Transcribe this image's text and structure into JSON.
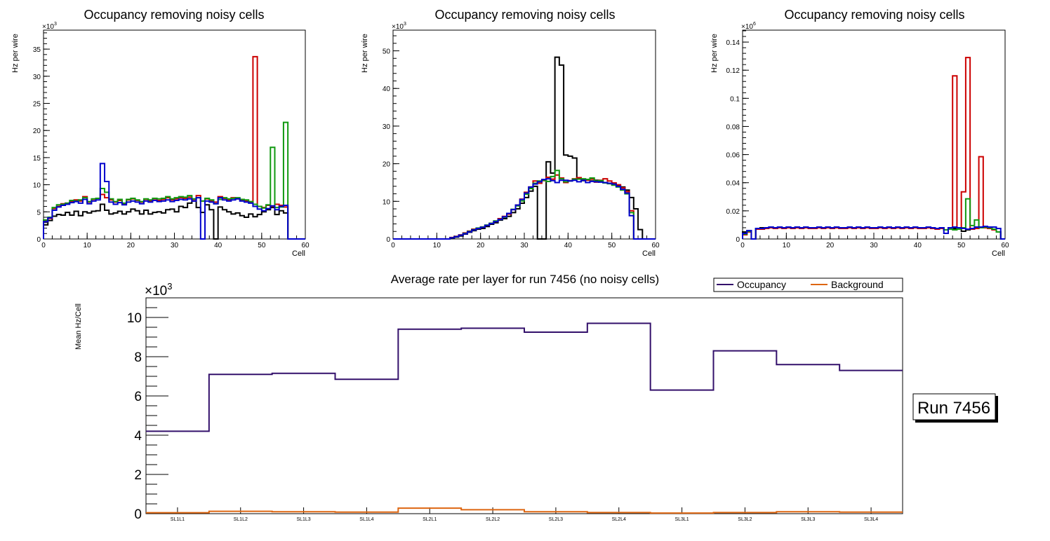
{
  "window": {
    "title": "Average rate per layer for run 7456"
  },
  "colors": {
    "black": "#000000",
    "red": "#cc0000",
    "green": "#119911",
    "blue": "#0000cc",
    "occupancy": "#33106b",
    "background": "#dd6611"
  },
  "chart_data": [
    {
      "type": "step",
      "title": "Occupancy removing noisy cells",
      "xlabel": "Cell",
      "ylabel": "Hz per wire",
      "exponent_label": "×10",
      "exponent_power": "3",
      "scale": 1000,
      "xlim": [
        0,
        60
      ],
      "ylim": [
        0,
        38.5
      ],
      "xticks": [
        "0",
        "10",
        "20",
        "30",
        "40",
        "50",
        "60"
      ],
      "xtick_values": [
        0,
        10,
        20,
        30,
        40,
        50,
        60
      ],
      "yticks": [
        "0",
        "5",
        "10",
        "15",
        "20",
        "25",
        "30",
        "35"
      ],
      "ytick_values": [
        0,
        5,
        10,
        15,
        20,
        25,
        30,
        35
      ],
      "series": [
        {
          "name": "black",
          "color": "#000000",
          "values": [
            2.6,
            3.4,
            4.2,
            4.5,
            4.4,
            4.9,
            4.4,
            5.1,
            4.3,
            5.0,
            4.8,
            5.1,
            5.2,
            6.4,
            5.3,
            4.6,
            4.8,
            5.1,
            4.6,
            5.0,
            5.5,
            5.2,
            4.6,
            5.3,
            4.6,
            4.9,
            5.0,
            4.8,
            5.4,
            5.5,
            5.0,
            6.0,
            5.8,
            6.6,
            7.0,
            5.8,
            4.9,
            6.3,
            5.4,
            0.0,
            5.9,
            5.4,
            5.0,
            4.6,
            4.8,
            4.3,
            4.0,
            4.6,
            4.1,
            4.5,
            5.0,
            5.4,
            5.8,
            4.5,
            5.2,
            4.8,
            0.0,
            0.0,
            0.0,
            0.0
          ]
        },
        {
          "name": "red",
          "color": "#cc0000",
          "values": [
            3.3,
            3.8,
            5.6,
            6.0,
            6.5,
            6.6,
            6.9,
            7.2,
            7.0,
            7.8,
            6.8,
            7.3,
            7.5,
            8.2,
            7.6,
            7.2,
            6.8,
            7.1,
            6.5,
            7.2,
            7.4,
            7.1,
            6.8,
            7.3,
            7.0,
            7.4,
            7.1,
            7.3,
            7.6,
            7.2,
            7.4,
            7.6,
            7.5,
            7.7,
            7.3,
            8.0,
            7.0,
            7.4,
            7.0,
            6.8,
            7.8,
            7.5,
            7.2,
            7.6,
            7.4,
            7.1,
            7.0,
            6.8,
            33.6,
            6.0,
            5.8,
            6.2,
            6.0,
            6.4,
            6.2,
            5.9,
            0.0,
            0.0,
            0.0,
            0.0
          ]
        },
        {
          "name": "green",
          "color": "#119911",
          "values": [
            3.5,
            4.0,
            5.8,
            6.3,
            6.4,
            6.6,
            7.1,
            7.0,
            7.2,
            7.6,
            6.9,
            7.4,
            7.5,
            9.3,
            8.6,
            7.4,
            6.9,
            7.3,
            6.6,
            7.3,
            7.5,
            7.2,
            6.9,
            7.4,
            7.2,
            7.5,
            7.4,
            7.5,
            7.8,
            7.4,
            7.6,
            7.8,
            7.7,
            8.0,
            7.4,
            7.6,
            7.0,
            7.5,
            7.2,
            6.5,
            7.3,
            7.6,
            7.4,
            7.5,
            7.6,
            7.3,
            7.2,
            6.9,
            6.4,
            6.0,
            5.7,
            6.3,
            16.9,
            5.8,
            5.9,
            21.5,
            0.0,
            0.0,
            0.0,
            0.0
          ]
        },
        {
          "name": "blue",
          "color": "#0000cc",
          "values": [
            3.2,
            3.9,
            5.3,
            5.9,
            6.2,
            6.4,
            6.7,
            6.9,
            6.6,
            7.3,
            6.5,
            7.0,
            7.2,
            13.9,
            10.6,
            6.8,
            6.4,
            6.7,
            6.3,
            6.8,
            7.0,
            6.8,
            6.5,
            7.0,
            6.8,
            7.1,
            6.9,
            7.0,
            7.2,
            6.9,
            7.1,
            7.3,
            7.2,
            7.4,
            7.0,
            7.6,
            0.0,
            7.0,
            6.8,
            6.5,
            7.6,
            7.2,
            7.0,
            7.2,
            7.4,
            7.0,
            6.8,
            6.6,
            6.0,
            5.5,
            5.2,
            5.6,
            6.1,
            5.4,
            6.0,
            6.2,
            0.0,
            0.0,
            0.0,
            0.0
          ]
        }
      ]
    },
    {
      "type": "step",
      "title": "Occupancy removing noisy cells",
      "xlabel": "Cell",
      "ylabel": "Hz per wire",
      "exponent_label": "×10",
      "exponent_power": "3",
      "scale": 1000,
      "xlim": [
        0,
        60
      ],
      "ylim": [
        0,
        55.5
      ],
      "xticks": [
        "0",
        "10",
        "20",
        "30",
        "40",
        "50",
        "60"
      ],
      "xtick_values": [
        0,
        10,
        20,
        30,
        40,
        50,
        60
      ],
      "yticks": [
        "0",
        "10",
        "20",
        "30",
        "40",
        "50"
      ],
      "ytick_values": [
        0,
        10,
        20,
        30,
        40,
        50
      ],
      "series": [
        {
          "name": "black",
          "color": "#000000",
          "values": [
            0.0,
            0.0,
            0.0,
            0.0,
            0.0,
            0.0,
            0.0,
            0.0,
            0.0,
            0.0,
            0.0,
            0.0,
            0.0,
            0.3,
            0.5,
            0.8,
            1.3,
            1.8,
            2.2,
            2.6,
            2.8,
            3.3,
            3.9,
            4.3,
            5.0,
            5.4,
            6.0,
            7.0,
            8.0,
            9.5,
            11.0,
            12.7,
            14.0,
            0.0,
            0.0,
            20.5,
            17.5,
            48.3,
            46.2,
            22.3,
            22.0,
            21.5,
            16.0,
            15.5,
            15.8,
            15.4,
            15.6,
            15.2,
            15.0,
            14.8,
            14.6,
            14.2,
            13.8,
            13.0,
            11.0,
            8.0,
            2.5,
            0.0,
            0.0,
            0.0
          ]
        },
        {
          "name": "red",
          "color": "#cc0000",
          "values": [
            0.0,
            0.0,
            0.0,
            0.0,
            0.0,
            0.0,
            0.0,
            0.0,
            0.0,
            0.0,
            0.0,
            0.0,
            0.0,
            0.4,
            0.7,
            1.1,
            1.6,
            2.1,
            2.6,
            2.8,
            3.2,
            3.6,
            4.1,
            4.6,
            5.4,
            6.0,
            6.6,
            7.8,
            9.0,
            10.6,
            12.4,
            13.8,
            15.4,
            14.8,
            15.5,
            16.4,
            15.9,
            17.0,
            16.2,
            15.0,
            15.5,
            16.0,
            16.3,
            15.7,
            15.6,
            15.9,
            15.1,
            15.6,
            16.0,
            15.4,
            14.9,
            14.4,
            13.6,
            12.6,
            7.5,
            0.0,
            0.0,
            0.0,
            0.0,
            0.0
          ]
        },
        {
          "name": "green",
          "color": "#119911",
          "values": [
            0.0,
            0.0,
            0.0,
            0.0,
            0.0,
            0.0,
            0.0,
            0.0,
            0.0,
            0.0,
            0.0,
            0.0,
            0.0,
            0.3,
            0.6,
            1.0,
            1.5,
            2.0,
            2.5,
            2.9,
            3.2,
            3.7,
            4.2,
            4.8,
            5.2,
            5.8,
            6.8,
            7.9,
            8.8,
            10.1,
            11.9,
            13.4,
            14.8,
            15.4,
            15.6,
            15.3,
            16.6,
            18.2,
            16.0,
            15.2,
            15.4,
            15.9,
            15.9,
            16.0,
            15.8,
            16.2,
            15.4,
            15.5,
            14.9,
            14.7,
            14.3,
            13.8,
            13.0,
            12.0,
            7.0,
            0.0,
            0.0,
            0.0,
            0.0,
            0.0
          ]
        },
        {
          "name": "blue",
          "color": "#0000cc",
          "values": [
            0.0,
            0.0,
            0.0,
            0.0,
            0.0,
            0.0,
            0.0,
            0.0,
            0.0,
            0.0,
            0.0,
            0.0,
            0.0,
            0.3,
            0.6,
            1.0,
            1.4,
            1.9,
            2.4,
            2.8,
            3.1,
            3.6,
            4.1,
            4.6,
            5.2,
            5.9,
            6.8,
            7.8,
            9.0,
            10.5,
            12.2,
            13.8,
            14.6,
            15.2,
            15.8,
            16.0,
            15.5,
            15.0,
            15.6,
            15.6,
            15.4,
            15.6,
            15.2,
            15.6,
            15.0,
            15.3,
            15.2,
            15.1,
            15.0,
            14.8,
            14.6,
            14.0,
            13.2,
            12.2,
            6.2,
            0.0,
            0.0,
            0.0,
            0.0,
            0.0
          ]
        }
      ]
    },
    {
      "type": "step",
      "title": "Occupancy removing noisy cells",
      "xlabel": "Cell",
      "ylabel": "Hz per wire",
      "exponent_label": "×10",
      "exponent_power": "6",
      "scale": 1000000,
      "xlim": [
        0,
        60
      ],
      "ylim": [
        0,
        0.1485
      ],
      "xticks": [
        "0",
        "10",
        "20",
        "30",
        "40",
        "50",
        "60"
      ],
      "xtick_values": [
        0,
        10,
        20,
        30,
        40,
        50,
        60
      ],
      "yticks": [
        "0",
        "0.02",
        "0.04",
        "0.06",
        "0.08",
        "0.1",
        "0.12",
        "0.14"
      ],
      "ytick_values": [
        0,
        0.02,
        0.04,
        0.06,
        0.08,
        0.1,
        0.12,
        0.14
      ],
      "series": [
        {
          "name": "black",
          "color": "#000000",
          "values": [
            0.005,
            0.006,
            0.0,
            0.0075,
            0.008,
            0.008,
            0.0085,
            0.008,
            0.0085,
            0.008,
            0.0085,
            0.008,
            0.0085,
            0.008,
            0.0085,
            0.008,
            0.008,
            0.0085,
            0.008,
            0.0085,
            0.008,
            0.0085,
            0.008,
            0.008,
            0.0085,
            0.008,
            0.0085,
            0.008,
            0.0085,
            0.008,
            0.008,
            0.0085,
            0.008,
            0.0085,
            0.008,
            0.0085,
            0.008,
            0.0085,
            0.008,
            0.0085,
            0.008,
            0.008,
            0.0085,
            0.008,
            0.0075,
            0.008,
            0.0065,
            0.008,
            0.0075,
            0.007,
            0.0055,
            0.0065,
            0.007,
            0.0075,
            0.008,
            0.0085,
            0.008,
            0.007,
            0.005,
            0.0
          ]
        },
        {
          "name": "red",
          "color": "#cc0000",
          "values": [
            0.003,
            0.005,
            0.0,
            0.007,
            0.007,
            0.0075,
            0.008,
            0.0075,
            0.008,
            0.0075,
            0.008,
            0.0075,
            0.008,
            0.0075,
            0.008,
            0.0075,
            0.0075,
            0.008,
            0.0075,
            0.008,
            0.0075,
            0.008,
            0.0075,
            0.0075,
            0.008,
            0.0075,
            0.008,
            0.0075,
            0.008,
            0.0075,
            0.0075,
            0.008,
            0.0075,
            0.008,
            0.0075,
            0.008,
            0.0075,
            0.008,
            0.0075,
            0.008,
            0.0075,
            0.0075,
            0.008,
            0.0075,
            0.007,
            0.0075,
            0.0065,
            0.0075,
            0.116,
            0.007,
            0.0335,
            0.129,
            0.007,
            0.0075,
            0.0585,
            0.008,
            0.0075,
            0.0065,
            0.005,
            0.0
          ]
        },
        {
          "name": "green",
          "color": "#119911",
          "values": [
            0.0035,
            0.0055,
            0.0,
            0.0075,
            0.0075,
            0.008,
            0.0085,
            0.008,
            0.0085,
            0.008,
            0.0085,
            0.008,
            0.0085,
            0.008,
            0.0085,
            0.008,
            0.008,
            0.0085,
            0.008,
            0.0085,
            0.008,
            0.0085,
            0.008,
            0.008,
            0.0085,
            0.008,
            0.0085,
            0.008,
            0.0085,
            0.008,
            0.008,
            0.0085,
            0.008,
            0.0085,
            0.008,
            0.0085,
            0.008,
            0.0085,
            0.008,
            0.0085,
            0.008,
            0.008,
            0.0085,
            0.008,
            0.0075,
            0.008,
            0.0065,
            0.007,
            0.0065,
            0.007,
            0.008,
            0.0285,
            0.0095,
            0.0135,
            0.008,
            0.0085,
            0.008,
            0.007,
            0.005,
            0.0
          ]
        },
        {
          "name": "blue",
          "color": "#0000cc",
          "values": [
            0.004,
            0.006,
            0.0,
            0.0075,
            0.0075,
            0.008,
            0.0085,
            0.008,
            0.0085,
            0.008,
            0.0085,
            0.008,
            0.0085,
            0.008,
            0.0085,
            0.008,
            0.008,
            0.0085,
            0.008,
            0.0085,
            0.008,
            0.0085,
            0.008,
            0.008,
            0.0085,
            0.008,
            0.0085,
            0.008,
            0.0085,
            0.008,
            0.008,
            0.0085,
            0.008,
            0.0085,
            0.008,
            0.0085,
            0.008,
            0.0085,
            0.008,
            0.0085,
            0.008,
            0.008,
            0.0085,
            0.008,
            0.0075,
            0.008,
            0.004,
            0.008,
            0.0085,
            0.008,
            0.0075,
            0.007,
            0.0075,
            0.0085,
            0.0085,
            0.009,
            0.0085,
            0.0085,
            0.0075,
            0.0
          ]
        }
      ]
    },
    {
      "type": "step",
      "title": "Average rate per layer for run 7456 (no noisy cells)",
      "xlabel": "",
      "ylabel": "Mean Hz/Cell",
      "exponent_label": "×10",
      "exponent_power": "3",
      "scale": 1000,
      "ylim": [
        0,
        11.0
      ],
      "yticks": [
        "0",
        "2",
        "4",
        "6",
        "8",
        "10"
      ],
      "ytick_values": [
        0,
        2,
        4,
        6,
        8,
        10
      ],
      "categories": [
        "SL1L1",
        "SL1L2",
        "SL1L3",
        "SL1L4",
        "SL2L1",
        "SL2L2",
        "SL2L3",
        "SL2L4",
        "SL3L1",
        "SL3L2",
        "SL3L3",
        "SL3L4"
      ],
      "series": [
        {
          "name": "Occupancy",
          "color": "#33106b",
          "values": [
            4.2,
            7.1,
            7.15,
            6.85,
            9.4,
            9.45,
            9.25,
            9.7,
            6.3,
            8.3,
            7.6,
            7.3
          ]
        },
        {
          "name": "Background",
          "color": "#dd6611",
          "values": [
            0.05,
            0.12,
            0.1,
            0.08,
            0.28,
            0.2,
            0.1,
            0.06,
            0.03,
            0.06,
            0.1,
            0.08
          ]
        }
      ],
      "legend": [
        "Occupancy",
        "Background"
      ],
      "legend_position": "top-right",
      "annotation": "Run 7456"
    }
  ]
}
